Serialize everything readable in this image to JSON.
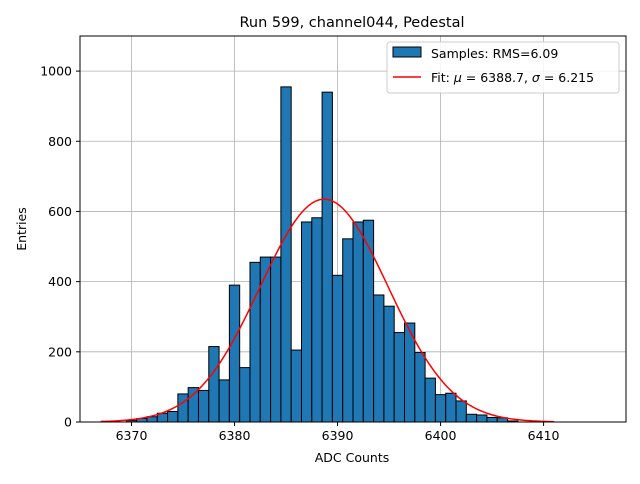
{
  "chart_data": {
    "type": "bar",
    "title": "Run 599, channel044, Pedestal",
    "xlabel": "ADC Counts",
    "ylabel": "Entries",
    "xlim": [
      6365,
      6418
    ],
    "ylim": [
      0,
      1100
    ],
    "xticks": [
      6370,
      6380,
      6390,
      6400,
      6410
    ],
    "yticks": [
      0,
      200,
      400,
      600,
      800,
      1000
    ],
    "grid": true,
    "legend_position": "top-right",
    "bin_width": 1.0,
    "bar_color": "#1f77b4",
    "fit_color": "#ff0000",
    "histogram": {
      "name": "Samples: RMS=6.09",
      "bins": [
        {
          "x": 6370,
          "y": 4
        },
        {
          "x": 6371,
          "y": 10
        },
        {
          "x": 6372,
          "y": 15
        },
        {
          "x": 6373,
          "y": 25
        },
        {
          "x": 6374,
          "y": 30
        },
        {
          "x": 6375,
          "y": 80
        },
        {
          "x": 6376,
          "y": 98
        },
        {
          "x": 6377,
          "y": 90
        },
        {
          "x": 6378,
          "y": 215
        },
        {
          "x": 6379,
          "y": 120
        },
        {
          "x": 6380,
          "y": 390
        },
        {
          "x": 6381,
          "y": 155
        },
        {
          "x": 6382,
          "y": 455
        },
        {
          "x": 6383,
          "y": 470
        },
        {
          "x": 6384,
          "y": 470
        },
        {
          "x": 6385,
          "y": 955
        },
        {
          "x": 6386,
          "y": 205
        },
        {
          "x": 6387,
          "y": 570
        },
        {
          "x": 6388,
          "y": 582
        },
        {
          "x": 6389,
          "y": 940
        },
        {
          "x": 6390,
          "y": 418
        },
        {
          "x": 6391,
          "y": 522
        },
        {
          "x": 6392,
          "y": 570
        },
        {
          "x": 6393,
          "y": 575
        },
        {
          "x": 6394,
          "y": 362
        },
        {
          "x": 6395,
          "y": 330
        },
        {
          "x": 6396,
          "y": 255
        },
        {
          "x": 6397,
          "y": 282
        },
        {
          "x": 6398,
          "y": 198
        },
        {
          "x": 6399,
          "y": 125
        },
        {
          "x": 6400,
          "y": 78
        },
        {
          "x": 6401,
          "y": 82
        },
        {
          "x": 6402,
          "y": 60
        },
        {
          "x": 6403,
          "y": 22
        },
        {
          "x": 6404,
          "y": 20
        },
        {
          "x": 6405,
          "y": 13
        },
        {
          "x": 6406,
          "y": 12
        },
        {
          "x": 6407,
          "y": 3
        }
      ]
    },
    "fit": {
      "name": "Fit: μ = 6388.7, σ = 6.215",
      "legend_parts": [
        "Fit: ",
        "μ",
        " = 6388.7, ",
        "σ",
        " = 6.215"
      ],
      "mu": 6388.7,
      "sigma": 6.215,
      "amplitude": 635,
      "x_range": [
        6367,
        6411
      ]
    }
  }
}
